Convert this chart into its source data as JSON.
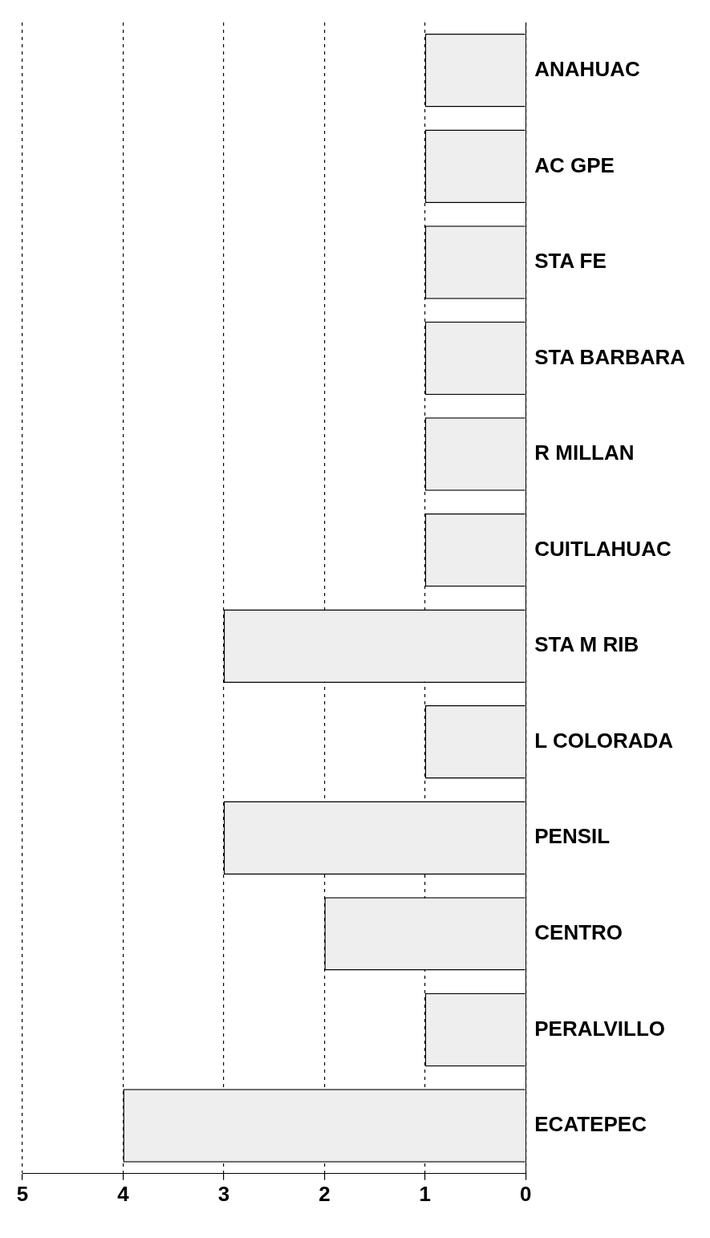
{
  "chart_data": {
    "type": "bar",
    "orientation": "horizontal",
    "categories": [
      "ANAHUAC",
      "AC GPE",
      "STA FE",
      "STA BARBARA",
      "R MILLAN",
      "CUITLAHUAC",
      "STA M RIB",
      "L COLORADA",
      "PENSIL",
      "CENTRO",
      "PERALVILLO",
      "ECATEPEC"
    ],
    "values": [
      1,
      1,
      1,
      1,
      1,
      1,
      3,
      1,
      3,
      2,
      1,
      4
    ],
    "color": "#eeeeee",
    "xlim": [
      5,
      0
    ],
    "xticks": [
      0,
      1,
      2,
      3,
      4,
      5
    ],
    "grid": "x",
    "legend": false
  }
}
